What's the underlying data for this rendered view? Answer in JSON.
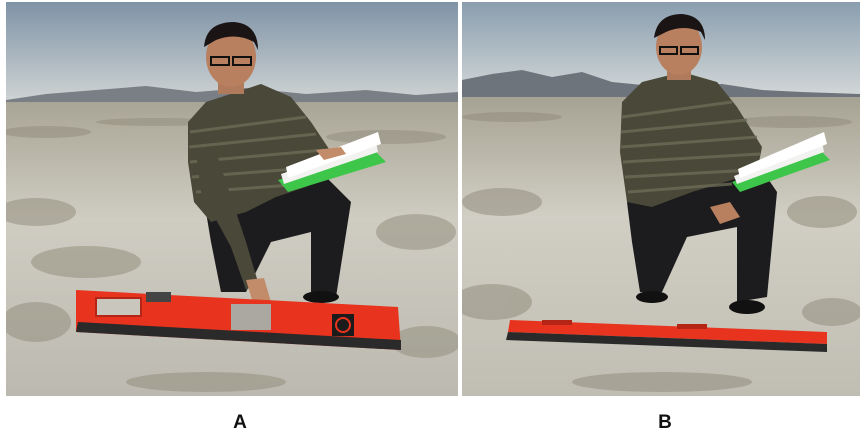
{
  "panels": [
    {
      "id": "A",
      "label": "A"
    },
    {
      "id": "B",
      "label": "B"
    }
  ],
  "colors": {
    "sky_top": "#8fa3b4",
    "sky_bottom": "#c9d0d3",
    "ground": "#c9c7bd",
    "ground_dark": "#8d8a7c",
    "sweater": "#4a4a3a",
    "pants": "#1c1c1e",
    "instrument": "#e8331e",
    "folder": "#3ec64a"
  }
}
